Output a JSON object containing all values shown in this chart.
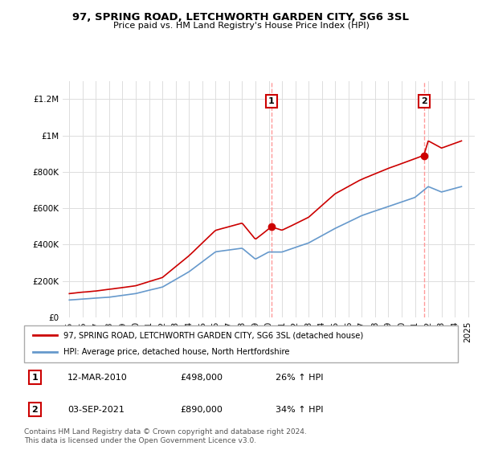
{
  "title": "97, SPRING ROAD, LETCHWORTH GARDEN CITY, SG6 3SL",
  "subtitle": "Price paid vs. HM Land Registry's House Price Index (HPI)",
  "legend_line1": "97, SPRING ROAD, LETCHWORTH GARDEN CITY, SG6 3SL (detached house)",
  "legend_line2": "HPI: Average price, detached house, North Hertfordshire",
  "annotation1": {
    "num": "1",
    "date": "12-MAR-2010",
    "price": "£498,000",
    "change": "26% ↑ HPI"
  },
  "annotation2": {
    "num": "2",
    "date": "03-SEP-2021",
    "price": "£890,000",
    "change": "34% ↑ HPI"
  },
  "footer": "Contains HM Land Registry data © Crown copyright and database right 2024.\nThis data is licensed under the Open Government Licence v3.0.",
  "red_color": "#cc0000",
  "blue_color": "#6699cc",
  "ylim": [
    0,
    1300000
  ],
  "yticks": [
    0,
    200000,
    400000,
    600000,
    800000,
    1000000,
    1200000
  ],
  "xlim_start": 1994.5,
  "xlim_end": 2025.5,
  "vline1_x": 2010.19,
  "vline2_x": 2021.67,
  "marker1_red_x": 2010.19,
  "marker1_red_y": 498000,
  "marker2_red_x": 2021.67,
  "marker2_red_y": 890000
}
